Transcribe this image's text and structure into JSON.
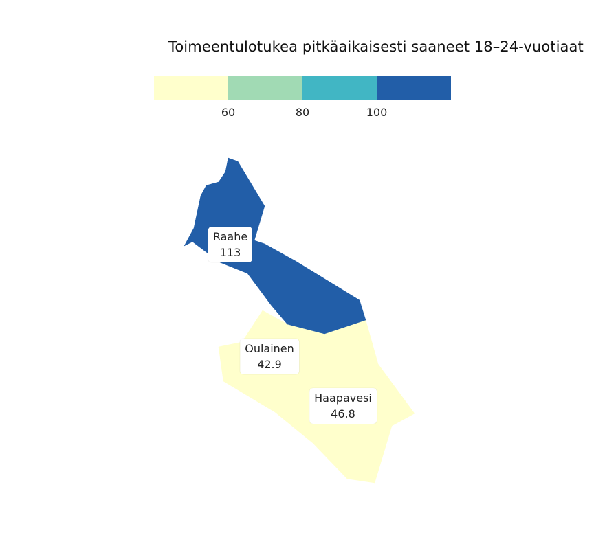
{
  "title": "Toimeentulotukea pitkäaikaisesti saaneet 18–24-vuotiaat",
  "legend": {
    "colors": [
      "#ffffcc",
      "#a1dab4",
      "#41b6c4",
      "#225ea8"
    ],
    "ticks": [
      "60",
      "80",
      "100"
    ]
  },
  "regions": [
    {
      "name": "Raahe",
      "value": "113",
      "color": "#225ea8"
    },
    {
      "name": "Oulainen",
      "value": "42.9",
      "color": "#ffffcc"
    },
    {
      "name": "Haapavesi",
      "value": "46.8",
      "color": "#ffffcc"
    }
  ]
}
